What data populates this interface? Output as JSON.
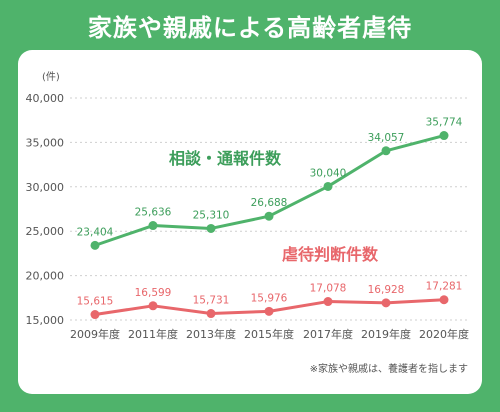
{
  "header": {
    "title": "家族や親戚による高齢者虐待"
  },
  "chart_data": {
    "type": "line",
    "categories": [
      "2009年度",
      "2011年度",
      "2013年度",
      "2015年度",
      "2017年度",
      "2019年度",
      "2020年度"
    ],
    "y_unit": "(件)",
    "ylim": [
      15000,
      40000
    ],
    "yticks": [
      "40,000",
      "35,000",
      "30,000",
      "25,000",
      "20,000",
      "15,000"
    ],
    "ytick_values": [
      40000,
      35000,
      30000,
      25000,
      20000,
      15000
    ],
    "grid": true,
    "series": [
      {
        "name": "相談・通報件数",
        "color": "#4fb36b",
        "values": [
          23404,
          25636,
          25310,
          26688,
          30040,
          34057,
          35774
        ],
        "labels": [
          "23,404",
          "25,636",
          "25,310",
          "26,688",
          "30,040",
          "34,057",
          "35,774"
        ]
      },
      {
        "name": "虐待判断件数",
        "color": "#e8676b",
        "values": [
          15615,
          16599,
          15731,
          15976,
          17078,
          16928,
          17281
        ],
        "labels": [
          "15,615",
          "16,599",
          "15,731",
          "15,976",
          "17,078",
          "16,928",
          "17,281"
        ]
      }
    ],
    "note": "※家族や親戚は、養護者を指します"
  }
}
